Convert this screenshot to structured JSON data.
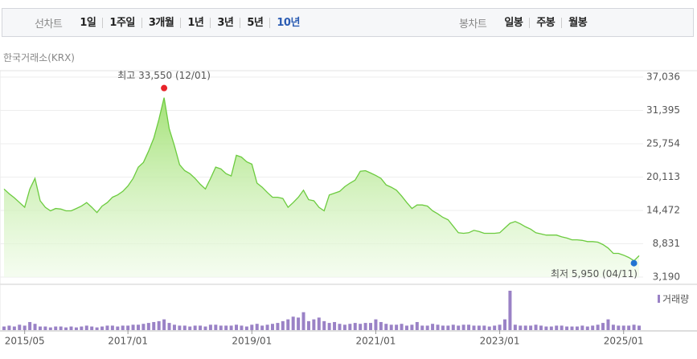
{
  "tabs": {
    "line_label": "선차트",
    "periods": [
      "1일",
      "1주일",
      "3개월",
      "1년",
      "3년",
      "5년",
      "10년"
    ],
    "selected_period": 6,
    "candle_label": "봉차트",
    "candle_periods": [
      "일봉",
      "주봉",
      "월봉"
    ]
  },
  "chart_data": {
    "type": "area",
    "source": "한국거래소(KRX)",
    "categories": [
      null,
      null,
      null,
      null,
      "2015/05",
      null,
      null,
      null,
      null,
      null,
      null,
      null,
      null,
      null,
      null,
      null,
      null,
      null,
      null,
      null,
      null,
      null,
      null,
      null,
      "2017/01",
      null,
      null,
      null,
      null,
      null,
      null,
      null,
      null,
      null,
      null,
      null,
      null,
      null,
      null,
      null,
      null,
      null,
      null,
      null,
      null,
      null,
      null,
      null,
      "2019/01",
      null,
      null,
      null,
      null,
      null,
      null,
      null,
      null,
      null,
      null,
      null,
      null,
      null,
      null,
      null,
      null,
      null,
      null,
      null,
      null,
      null,
      null,
      null,
      "2021/01",
      null,
      null,
      null,
      null,
      null,
      null,
      null,
      null,
      null,
      null,
      null,
      null,
      null,
      null,
      null,
      null,
      null,
      null,
      null,
      null,
      null,
      null,
      null,
      "2023/01",
      null,
      null,
      null,
      null,
      null,
      null,
      null,
      null,
      null,
      null,
      null,
      null,
      null,
      null,
      null,
      null,
      null,
      null,
      null,
      null,
      null,
      null,
      null,
      "2025/01",
      null,
      null,
      null
    ],
    "values": [
      18100,
      17300,
      16600,
      15800,
      15000,
      18100,
      19900,
      16100,
      15000,
      14400,
      14800,
      14700,
      14400,
      14400,
      14800,
      15200,
      15800,
      15000,
      14100,
      15200,
      15800,
      16700,
      17100,
      17700,
      18600,
      19900,
      21800,
      22600,
      24500,
      26700,
      29900,
      33550,
      28300,
      25400,
      22200,
      21200,
      20700,
      19900,
      18900,
      18100,
      19900,
      21800,
      21500,
      20700,
      20300,
      23800,
      23500,
      22700,
      22300,
      19100,
      18400,
      17500,
      16700,
      16700,
      16500,
      15000,
      15800,
      16700,
      17900,
      16300,
      16100,
      15000,
      14400,
      17100,
      17400,
      17700,
      18500,
      19100,
      19600,
      21100,
      21200,
      20800,
      20400,
      19900,
      18800,
      18400,
      17900,
      16900,
      15800,
      14800,
      15400,
      15400,
      15200,
      14400,
      13900,
      13300,
      12900,
      11800,
      10700,
      10600,
      10700,
      11100,
      10900,
      10600,
      10600,
      10600,
      10700,
      11500,
      12300,
      12600,
      12200,
      11700,
      11300,
      10700,
      10500,
      10300,
      10300,
      10300,
      10000,
      9800,
      9500,
      9500,
      9400,
      9200,
      9200,
      9100,
      8700,
      8100,
      7200,
      7200,
      6900,
      6500,
      5950,
      6800
    ],
    "color": "#6ccb3f",
    "ylim": [
      3190,
      37036
    ],
    "yticks": [
      {
        "value": 3190,
        "label": "3,190"
      },
      {
        "value": 8831,
        "label": "8,831"
      },
      {
        "value": 14472,
        "label": "14,472"
      },
      {
        "value": 20113,
        "label": "20,113"
      },
      {
        "value": 25754,
        "label": "25,754"
      },
      {
        "value": 31395,
        "label": "31,395"
      },
      {
        "value": 37036,
        "label": "37,036"
      }
    ],
    "grid": true,
    "high_label": "최고 33,550 (12/01)",
    "high_color": "#e8232a",
    "low_label": "최저 5,950 (04/11)",
    "low_color": "#2274d2",
    "volume": {
      "name": "거래량",
      "color": "#9a82c6",
      "values": [
        4,
        5,
        4,
        6,
        5,
        9,
        7,
        4,
        4,
        3,
        4,
        4,
        3,
        4,
        3,
        4,
        5,
        4,
        3,
        4,
        5,
        5,
        4,
        5,
        5,
        6,
        6,
        7,
        8,
        9,
        10,
        12,
        8,
        6,
        5,
        5,
        4,
        5,
        5,
        4,
        6,
        6,
        5,
        5,
        5,
        6,
        5,
        4,
        6,
        7,
        5,
        6,
        7,
        8,
        10,
        12,
        15,
        14,
        20,
        10,
        12,
        14,
        10,
        8,
        9,
        7,
        6,
        7,
        8,
        7,
        8,
        8,
        12,
        9,
        7,
        6,
        6,
        7,
        5,
        6,
        9,
        5,
        5,
        7,
        6,
        5,
        5,
        6,
        5,
        6,
        6,
        5,
        5,
        5,
        4,
        5,
        6,
        12,
        44,
        6,
        5,
        5,
        5,
        6,
        5,
        4,
        4,
        5,
        5,
        4,
        4,
        4,
        5,
        4,
        5,
        6,
        8,
        12,
        6,
        5,
        5,
        5,
        6,
        5
      ]
    }
  }
}
